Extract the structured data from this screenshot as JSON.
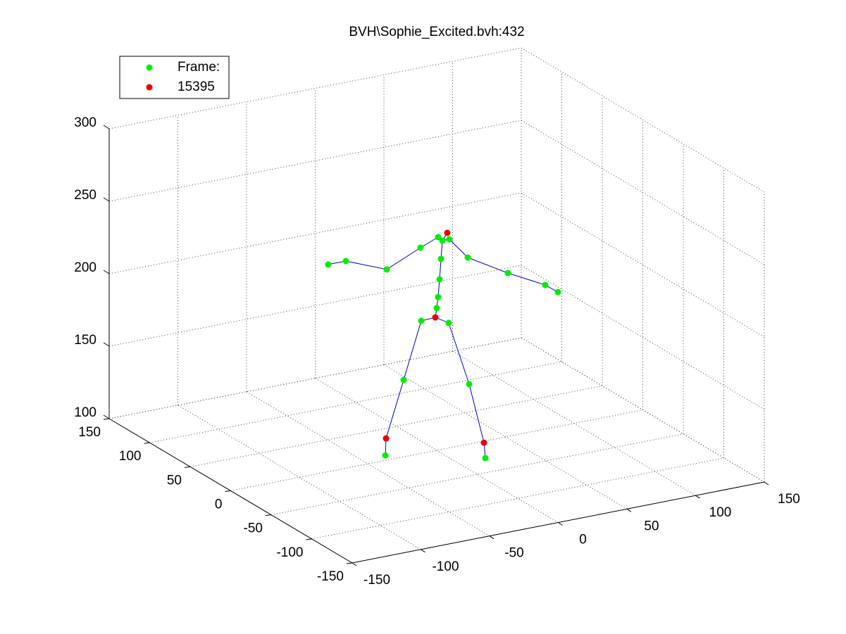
{
  "chart_data": {
    "type": "scatter3d",
    "title": "BVH\\Sophie_Excited.bvh:432",
    "series": [
      {
        "name": "Frame:",
        "color": "#00ee00",
        "x": [
          -11.3,
          8.7,
          -24.1,
          -37.4,
          23.6,
          35.4,
          0,
          1,
          2.1,
          3.1,
          4.1,
          1,
          -11.8,
          -36.4,
          -66.2,
          -79,
          9.2,
          22.6,
          51.8,
          79,
          88.2
        ],
        "y": [
          0,
          0,
          0,
          0,
          0,
          0,
          0,
          0,
          0,
          0,
          0,
          0,
          0,
          0,
          0,
          0,
          0,
          0,
          0,
          0,
          0
        ],
        "z": [
          191.4,
          186.3,
          153,
          103.5,
          141.3,
          88.1,
          198.1,
          205.6,
          217.6,
          231.5,
          243.9,
          246.9,
          242,
          231.6,
          242.9,
          242.9,
          243.9,
          228.8,
          212.7,
          199.4,
          192.8
        ]
      },
      {
        "name": "15395",
        "color": "#ee0000",
        "x": [
          -1,
          -36.9,
          34.4,
          7.7
        ],
        "y": [
          0,
          0,
          0,
          0
        ],
        "z": [
          191.9,
          115.1,
          98.9,
          248.6
        ]
      }
    ],
    "line_color": "#0000cc",
    "xlim": [
      -150,
      150
    ],
    "xticks": [
      -150,
      -100,
      -50,
      0,
      50,
      100,
      150
    ],
    "ylim": [
      -150,
      150
    ],
    "yticks": [
      -150,
      -100,
      -50,
      0,
      50,
      100,
      150
    ],
    "zlim": [
      100,
      300
    ],
    "zticks": [
      100,
      150,
      200,
      250,
      300
    ],
    "grid": true,
    "legend": "upper left"
  }
}
